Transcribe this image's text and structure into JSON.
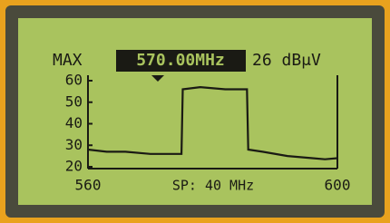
{
  "chart_data": {
    "type": "line",
    "annotations": [
      "MAX",
      "570.00MHz",
      "26 dBμV",
      "SP: 40 MHz"
    ],
    "x": [
      560,
      563,
      566,
      570,
      575,
      575.2,
      578,
      582,
      585.5,
      585.7,
      588,
      592,
      596,
      598,
      600
    ],
    "series": [
      {
        "color": "#1a1a14",
        "values": [
          28,
          27,
          27,
          26,
          26,
          56,
          57,
          56,
          56,
          28,
          27,
          25,
          24,
          23.5,
          24
        ]
      }
    ],
    "xlim": [
      560,
      600
    ],
    "xticks": [
      560,
      600
    ],
    "ylim": [
      20,
      60
    ],
    "yticks": [
      20,
      30,
      40,
      50,
      60
    ]
  }
}
